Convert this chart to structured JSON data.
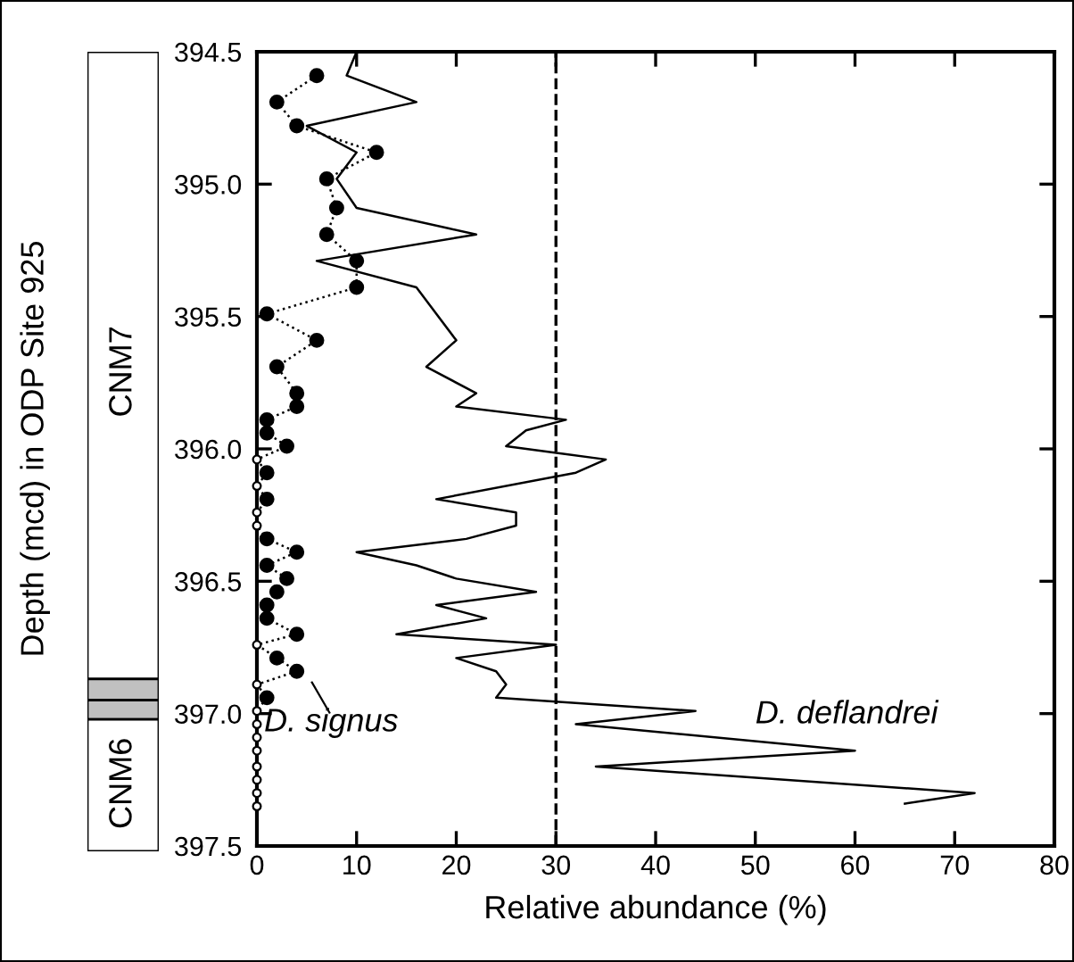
{
  "chart_data": {
    "type": "line",
    "xlabel": "Relative abundance (%)",
    "ylabel": "Depth (mcd) in ODP Site 925",
    "xlim": [
      0,
      80
    ],
    "xticks": [
      0,
      10,
      20,
      30,
      40,
      50,
      60,
      70,
      80
    ],
    "ylim": [
      397.5,
      394.5
    ],
    "yticks": [
      {
        "value": 394.5,
        "label": "394.5"
      },
      {
        "value": 395,
        "label": "395.0"
      },
      {
        "value": 395.5,
        "label": "395.5"
      },
      {
        "value": 396,
        "label": "396.0"
      },
      {
        "value": 396.5,
        "label": "396.5"
      },
      {
        "value": 397,
        "label": "397.0"
      },
      {
        "value": 397.5,
        "label": "397.5"
      }
    ],
    "grid": false,
    "series": [
      {
        "color": "#000000",
        "line_style": "solid",
        "marker": "none",
        "x": [
          10,
          9,
          16,
          5,
          10,
          8,
          10,
          22,
          6,
          16,
          20,
          17,
          22,
          20,
          31,
          27,
          25,
          35,
          32,
          18,
          26,
          26,
          21,
          10,
          16,
          20,
          28,
          18,
          23,
          14,
          30,
          20,
          24,
          25,
          24,
          44,
          32,
          60,
          34,
          72,
          65
        ],
        "values": [
          394.5,
          394.59,
          394.69,
          394.78,
          394.88,
          394.98,
          395.09,
          395.19,
          395.29,
          395.39,
          395.59,
          395.69,
          395.79,
          395.84,
          395.89,
          395.93,
          395.99,
          396.04,
          396.09,
          396.19,
          396.24,
          396.29,
          396.34,
          396.39,
          396.44,
          396.49,
          396.54,
          396.59,
          396.64,
          396.7,
          396.74,
          396.79,
          396.84,
          396.89,
          396.94,
          396.99,
          397.04,
          397.14,
          397.2,
          397.3,
          397.34
        ]
      },
      {
        "type": "line",
        "color": "#000000",
        "line_style": "dotted",
        "marker": "none",
        "x": [
          6,
          2,
          4,
          12,
          7,
          8,
          7,
          10,
          10,
          1,
          6,
          2,
          4,
          4,
          1,
          1,
          3,
          0,
          1,
          0,
          1,
          0,
          0,
          1,
          4,
          1,
          3,
          2,
          1,
          1,
          4,
          0,
          2,
          4,
          0,
          1,
          0,
          0,
          0,
          0,
          0,
          0,
          0,
          0
        ],
        "values": [
          394.59,
          394.69,
          394.78,
          394.88,
          394.98,
          395.09,
          395.19,
          395.29,
          395.39,
          395.49,
          395.59,
          395.69,
          395.79,
          395.84,
          395.89,
          395.94,
          395.99,
          396.04,
          396.09,
          396.14,
          396.19,
          396.24,
          396.29,
          396.34,
          396.39,
          396.44,
          396.49,
          396.54,
          396.59,
          396.64,
          396.7,
          396.74,
          396.79,
          396.84,
          396.89,
          396.94,
          396.99,
          397.04,
          397.09,
          397.14,
          397.2,
          397.25,
          397.3,
          397.35
        ]
      },
      {
        "type": "scatter",
        "color": "#000000",
        "marker": "circle",
        "x": [
          6,
          2,
          4,
          12,
          7,
          8,
          7,
          10,
          10,
          1,
          6,
          2,
          4,
          4,
          1,
          1,
          3,
          1,
          1,
          1,
          4,
          1,
          3,
          2,
          1,
          1,
          4,
          2,
          4,
          1
        ],
        "values": [
          394.59,
          394.69,
          394.78,
          394.88,
          394.98,
          395.09,
          395.19,
          395.29,
          395.39,
          395.49,
          395.59,
          395.69,
          395.79,
          395.84,
          395.89,
          395.94,
          395.99,
          396.09,
          396.19,
          396.34,
          396.39,
          396.44,
          396.49,
          396.54,
          396.59,
          396.64,
          396.7,
          396.79,
          396.84,
          396.94
        ]
      },
      {
        "type": "scatter",
        "color": "#ffffff",
        "marker": "circle",
        "x": [
          0,
          0,
          0,
          0,
          0,
          0,
          0,
          0,
          0,
          0,
          0,
          0,
          0,
          0
        ],
        "values": [
          396.04,
          396.14,
          396.24,
          396.29,
          396.74,
          396.89,
          396.99,
          397.04,
          397.09,
          397.14,
          397.2,
          397.25,
          397.3,
          397.35
        ]
      }
    ],
    "ref_lines": [
      {
        "axis": "x",
        "value": 30,
        "color": "#000000",
        "line_style": "dashed"
      }
    ],
    "annotations": [
      "D. signus",
      "D. deflandrei",
      "CNM7",
      "CNM6"
    ]
  }
}
